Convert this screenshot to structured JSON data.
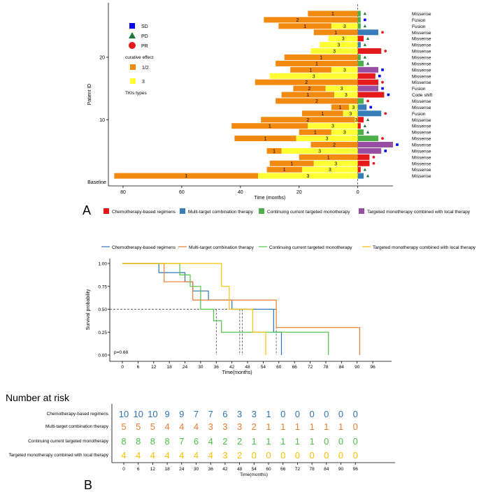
{
  "panel_labels": {
    "a": "A",
    "b": "B"
  },
  "colors": {
    "orange": "#F28A10",
    "yellow": "#FFFF33",
    "red": "#E41A1C",
    "blue": "#377EB8",
    "green": "#4DAF4A",
    "purple": "#984EA3",
    "km_chemo": "#2E75B6",
    "km_multi": "#ED7D31",
    "km_cont": "#4DC247",
    "km_local": "#FFC000"
  },
  "chart_data": [
    {
      "type": "bar",
      "subtype": "swimmer",
      "xlabel": "Time (months)",
      "ylabel": "Patient ID",
      "xlim": [
        -85,
        12
      ],
      "x_ticks": [
        {
          "v": -80,
          "label": "80"
        },
        {
          "v": -60,
          "label": "60"
        },
        {
          "v": -40,
          "label": "40"
        },
        {
          "v": -20,
          "label": "20"
        },
        {
          "v": 0,
          "label": "0"
        }
      ],
      "y_ticks": [
        {
          "row": 10,
          "label": "10"
        },
        {
          "row": 20,
          "label": "20"
        }
      ],
      "baseline_label": "Baseline",
      "legend_title": "curative effect",
      "legend_symbols": [
        {
          "shape": "square",
          "label": "SD"
        },
        {
          "shape": "triangle",
          "label": "PD"
        },
        {
          "shape": "circle",
          "label": "PR"
        }
      ],
      "legend_tki": [
        {
          "label": "1/2"
        },
        {
          "label": "3"
        }
      ],
      "legend_tki_title": "TKIs types",
      "bottom_legend": [
        {
          "label": "Chemotherapy-based regimens",
          "color": "#E41A1C"
        },
        {
          "label": "Multi-target combination therapy",
          "color": "#377EB8"
        },
        {
          "label": "Continuing current targeted monotherapy",
          "color": "#4DAF4A"
        },
        {
          "label": "Targeted monotherapy combined with  local therapy",
          "color": "#984EA3"
        }
      ],
      "patients": [
        {
          "id": 27,
          "mut": "Missense",
          "segs": [
            {
              "s": -17,
              "e": 0,
              "t": "1"
            }
          ],
          "after": {
            "c": "green",
            "e": 1
          },
          "sym": "triangle"
        },
        {
          "id": 26,
          "mut": "Fusion",
          "segs": [
            {
              "s": -32,
              "e": -9,
              "t": "2"
            },
            {
              "s": -9,
              "e": 0,
              "t": ""
            }
          ],
          "after": {
            "c": "green",
            "e": 1
          },
          "sym": "square"
        },
        {
          "id": 25,
          "mut": "Fusion",
          "segs": [
            {
              "s": -27,
              "e": -9,
              "t": "1"
            },
            {
              "s": -9,
              "e": 0,
              "t": "3"
            }
          ],
          "after": {
            "c": "green",
            "e": 1
          },
          "sym": "triangle"
        },
        {
          "id": 24,
          "mut": "Missense",
          "segs": [
            {
              "s": -15,
              "e": 0,
              "t": "1"
            }
          ],
          "after": {
            "c": "blue",
            "e": 7
          },
          "sym": "circle"
        },
        {
          "id": 23,
          "mut": "Missense",
          "segs": [
            {
              "s": -10,
              "e": 0,
              "t": "3"
            }
          ],
          "after": {
            "c": "red",
            "e": 2
          },
          "sym": "triangle"
        },
        {
          "id": 22,
          "mut": "Missense",
          "segs": [
            {
              "s": -13,
              "e": 0,
              "t": "3"
            }
          ],
          "after": {
            "c": "blue",
            "e": 1
          },
          "sym": "triangle"
        },
        {
          "id": 21,
          "mut": "Missense",
          "segs": [
            {
              "s": -16,
              "e": 0,
              "t": "3"
            }
          ],
          "after": {
            "c": "red",
            "e": 8
          },
          "sym": "circle"
        },
        {
          "id": 20,
          "mut": "Missense",
          "segs": [
            {
              "s": -25,
              "e": 0,
              "t": "1"
            }
          ],
          "after": {
            "c": "green",
            "e": 1
          },
          "sym": "triangle"
        },
        {
          "id": 19,
          "mut": "Missense",
          "segs": [
            {
              "s": -28,
              "e": 0,
              "t": "1"
            }
          ],
          "after": {
            "c": "green",
            "e": 2
          },
          "sym": "triangle"
        },
        {
          "id": 18,
          "mut": "Missense",
          "segs": [
            {
              "s": -23,
              "e": -9,
              "t": "1"
            },
            {
              "s": -9,
              "e": 0,
              "t": "3"
            }
          ],
          "after": {
            "c": "purple",
            "e": 7
          },
          "sym": "square"
        },
        {
          "id": 17,
          "mut": "Missense",
          "segs": [
            {
              "s": -30,
              "e": 0,
              "t": "3"
            }
          ],
          "after": {
            "c": "red",
            "e": 6
          },
          "sym": "square"
        },
        {
          "id": 16,
          "mut": "Missense",
          "segs": [
            {
              "s": -35,
              "e": 0,
              "t": "2"
            }
          ],
          "after": {
            "c": "red",
            "e": 7
          },
          "sym": "circle"
        },
        {
          "id": 15,
          "mut": "Fusion",
          "segs": [
            {
              "s": -22,
              "e": -11,
              "t": "2"
            },
            {
              "s": -11,
              "e": 0,
              "t": "3"
            }
          ],
          "after": {
            "c": "purple",
            "e": 7
          },
          "sym": "square"
        },
        {
          "id": 14,
          "mut": "Code shift",
          "segs": [
            {
              "s": -26,
              "e": -8,
              "t": "1"
            },
            {
              "s": -8,
              "e": 0,
              "t": "3"
            }
          ],
          "after": {
            "c": "red",
            "e": 9
          },
          "sym": "square"
        },
        {
          "id": 13,
          "mut": "Missense",
          "segs": [
            {
              "s": -28,
              "e": 0,
              "t": "2"
            }
          ],
          "after": {
            "c": "green",
            "e": 2
          },
          "sym": "circle"
        },
        {
          "id": 12,
          "mut": "Missense",
          "segs": [
            {
              "s": -9,
              "e": -3,
              "t": "1"
            },
            {
              "s": -3,
              "e": 0,
              "t": "3"
            }
          ],
          "after": {
            "c": "blue",
            "e": 3
          },
          "sym": "square"
        },
        {
          "id": 11,
          "mut": "Fusion",
          "segs": [
            {
              "s": -19,
              "e": -5,
              "t": "1"
            },
            {
              "s": -5,
              "e": 0,
              "t": "3"
            }
          ],
          "after": {
            "c": "blue",
            "e": 8
          },
          "sym": "circle"
        },
        {
          "id": 10,
          "mut": "Missense",
          "segs": [
            {
              "s": -33,
              "e": -1,
              "t": "2"
            },
            {
              "s": -1,
              "e": 0,
              "t": "3"
            }
          ],
          "after": {
            "c": "red",
            "e": 2
          },
          "sym": "triangle"
        },
        {
          "id": 9,
          "mut": "Missense",
          "segs": [
            {
              "s": -43,
              "e": -17,
              "t": "1"
            },
            {
              "s": -17,
              "e": 0,
              "t": "3"
            }
          ],
          "after": {
            "c": "red",
            "e": 1
          },
          "sym": "triangle"
        },
        {
          "id": 8,
          "mut": "Missense",
          "segs": [
            {
              "s": -20,
              "e": -9,
              "t": "1"
            },
            {
              "s": -9,
              "e": 0,
              "t": "3"
            }
          ],
          "after": {
            "c": "green",
            "e": 2
          },
          "sym": "triangle"
        },
        {
          "id": 7,
          "mut": "Missense",
          "segs": [
            {
              "s": -42,
              "e": -21,
              "t": "1"
            },
            {
              "s": -21,
              "e": 0,
              "t": "3"
            }
          ],
          "after": {
            "c": "green",
            "e": 7
          },
          "sym": "circle"
        },
        {
          "id": 6,
          "mut": "Missense",
          "segs": [
            {
              "s": -16,
              "e": 0,
              "t": "2"
            }
          ],
          "after": {
            "c": "purple",
            "e": 12
          },
          "sym": "square"
        },
        {
          "id": 5,
          "mut": "Missense",
          "segs": [
            {
              "s": -31,
              "e": -26,
              "t": "1"
            },
            {
              "s": -26,
              "e": 0,
              "t": "3"
            }
          ],
          "after": {
            "c": "purple",
            "e": 8
          },
          "sym": "square"
        },
        {
          "id": 4,
          "mut": "Missense",
          "segs": [
            {
              "s": -20,
              "e": 0,
              "t": "1"
            }
          ],
          "after": {
            "c": "red",
            "e": 4
          },
          "sym": "circle"
        },
        {
          "id": 3,
          "mut": "Missense",
          "segs": [
            {
              "s": -30,
              "e": -15,
              "t": "1"
            },
            {
              "s": -15,
              "e": 0,
              "t": "3"
            }
          ],
          "after": {
            "c": "red",
            "e": 4
          },
          "sym": "circle"
        },
        {
          "id": 2,
          "mut": "Missense",
          "segs": [
            {
              "s": -31,
              "e": -19,
              "t": "1"
            },
            {
              "s": -19,
              "e": 0,
              "t": "3"
            }
          ],
          "after": {
            "c": "red",
            "e": 1
          },
          "sym": "triangle"
        },
        {
          "id": 1,
          "mut": "Missense",
          "segs": [
            {
              "s": -83,
              "e": -34,
              "t": "1"
            },
            {
              "s": -34,
              "e": 0,
              "t": "3"
            }
          ],
          "after": {
            "c": "blue",
            "e": 2
          },
          "sym": "triangle"
        }
      ]
    },
    {
      "type": "line",
      "subtype": "kaplan-meier",
      "ylabel": "Survival probability",
      "xlabel": "Time(months)",
      "xlim": [
        0,
        100
      ],
      "ylim": [
        0,
        1
      ],
      "x_ticks": [
        0,
        6,
        12,
        18,
        24,
        30,
        36,
        42,
        48,
        54,
        60,
        66,
        72,
        78,
        84,
        90,
        96
      ],
      "y_ticks": [
        {
          "v": 0,
          "label": "0.00"
        },
        {
          "v": 0.25,
          "label": "0.25"
        },
        {
          "v": 0.5,
          "label": "0.50"
        },
        {
          "v": 0.75,
          "label": "0.75"
        },
        {
          "v": 1,
          "label": "1.00"
        }
      ],
      "pvalue": "p=0.68",
      "median_line_y": 0.5,
      "median_x": [
        36,
        45,
        46,
        59
      ],
      "series": [
        {
          "name": "Chemotherapy-based regimens",
          "color": "#2E75B6",
          "points": [
            [
              0,
              1
            ],
            [
              14,
              1
            ],
            [
              14,
              0.9
            ],
            [
              24,
              0.9
            ],
            [
              24,
              0.8
            ],
            [
              27,
              0.8
            ],
            [
              27,
              0.7
            ],
            [
              33,
              0.7
            ],
            [
              33,
              0.6
            ],
            [
              42,
              0.6
            ],
            [
              42,
              0.5
            ],
            [
              58,
              0.5
            ],
            [
              58,
              0.25
            ],
            [
              61,
              0.25
            ],
            [
              61,
              0
            ]
          ]
        },
        {
          "name": "Multi-target combination therapy",
          "color": "#ED7D31",
          "points": [
            [
              0,
              1
            ],
            [
              16,
              1
            ],
            [
              16,
              0.8
            ],
            [
              27,
              0.8
            ],
            [
              27,
              0.6
            ],
            [
              41,
              0.6
            ],
            [
              41,
              0.6
            ],
            [
              59,
              0.6
            ],
            [
              59,
              0.3
            ],
            [
              91,
              0.3
            ],
            [
              91,
              0
            ]
          ]
        },
        {
          "name": "Continuing current targeted monotherapy",
          "color": "#4DC247",
          "points": [
            [
              0,
              1
            ],
            [
              22,
              1
            ],
            [
              22,
              0.875
            ],
            [
              26,
              0.875
            ],
            [
              26,
              0.75
            ],
            [
              30,
              0.75
            ],
            [
              30,
              0.5
            ],
            [
              35,
              0.5
            ],
            [
              35,
              0.375
            ],
            [
              38,
              0.375
            ],
            [
              38,
              0.25
            ],
            [
              79,
              0.25
            ],
            [
              79,
              0
            ]
          ]
        },
        {
          "name": "Targeted monotherapy combined with  local therapy",
          "color": "#FFC000",
          "points": [
            [
              0,
              1
            ],
            [
              38,
              1
            ],
            [
              38,
              0.75
            ],
            [
              41,
              0.75
            ],
            [
              41,
              0.5
            ],
            [
              50,
              0.5
            ],
            [
              50,
              0.25
            ],
            [
              55,
              0.25
            ],
            [
              55,
              0
            ]
          ]
        }
      ]
    },
    {
      "type": "table",
      "subtype": "number-at-risk",
      "title": "Number at risk",
      "xlabel": "Time(months)",
      "x_ticks": [
        0,
        6,
        12,
        18,
        24,
        30,
        36,
        42,
        48,
        54,
        60,
        66,
        72,
        78,
        84,
        90,
        96
      ],
      "rows": [
        {
          "name": "Chemotherapy-based regimens",
          "color": "#2E75B6",
          "values": [
            10,
            10,
            10,
            9,
            9,
            7,
            7,
            6,
            3,
            3,
            1,
            0,
            0,
            0,
            0,
            0,
            0
          ]
        },
        {
          "name": "Multi-target combination therapy",
          "color": "#ED7D31",
          "values": [
            5,
            5,
            5,
            4,
            4,
            4,
            3,
            3,
            3,
            2,
            1,
            1,
            1,
            1,
            1,
            1,
            0
          ]
        },
        {
          "name": "Continuing current targeted monotherapy",
          "color": "#4DC247",
          "values": [
            8,
            8,
            8,
            8,
            7,
            6,
            4,
            2,
            2,
            1,
            1,
            1,
            1,
            1,
            0,
            0,
            0
          ]
        },
        {
          "name": "Targeted monotherapy combined with  local therapy",
          "color": "#FFC000",
          "values": [
            4,
            4,
            4,
            4,
            4,
            4,
            4,
            3,
            2,
            0,
            0,
            0,
            0,
            0,
            0,
            0,
            0
          ]
        }
      ]
    }
  ]
}
